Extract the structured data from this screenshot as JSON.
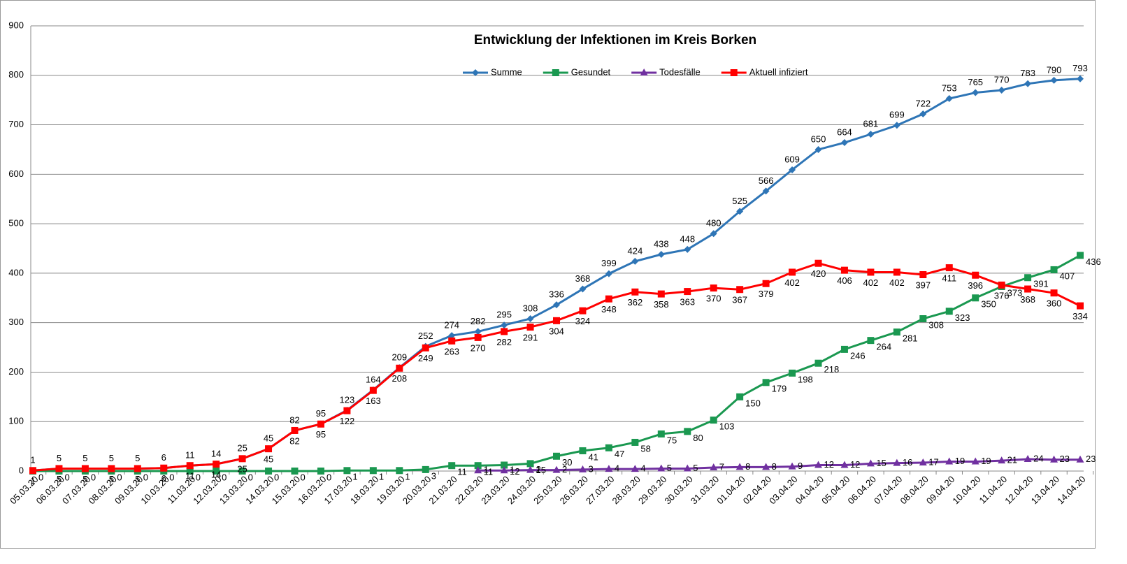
{
  "chart_data": {
    "type": "line",
    "title": "Entwicklung der Infektionen im Kreis Borken",
    "categories": [
      "05.03.20",
      "06.03.20",
      "07.03.20",
      "08.03.20",
      "09.03.20",
      "10.03.20",
      "11.03.20",
      "12.03.20",
      "13.03.20",
      "14.03.20",
      "15.03.20",
      "16.03.20",
      "17.03.20",
      "18.03.20",
      "19.03.20",
      "20.03.20",
      "21.03.20",
      "22.03.20",
      "23.03.20",
      "24.03.20",
      "25.03.20",
      "26.03.20",
      "27.03.20",
      "28.03.20",
      "29.03.20",
      "30.03.20",
      "31.03.20",
      "01.04.20",
      "02.04.20",
      "03.04.20",
      "04.04.20",
      "05.04.20",
      "06.04.20",
      "07.04.20",
      "08.04.20",
      "09.04.20",
      "10.04.20",
      "11.04.20",
      "12.04.20",
      "13.04.20",
      "14.04.20"
    ],
    "series": [
      {
        "name": "Summe",
        "color": "#2e75b6",
        "marker": "diamond",
        "values": [
          1,
          5,
          5,
          5,
          5,
          6,
          11,
          14,
          25,
          45,
          82,
          95,
          123,
          164,
          209,
          252,
          274,
          282,
          295,
          308,
          336,
          368,
          399,
          424,
          438,
          448,
          480,
          525,
          566,
          609,
          650,
          664,
          681,
          699,
          722,
          753,
          765,
          770,
          783,
          790,
          793
        ]
      },
      {
        "name": "Gesundet",
        "color": "#1a9850",
        "marker": "square",
        "values": [
          0,
          0,
          0,
          0,
          0,
          0,
          0,
          0,
          0,
          0,
          0,
          0,
          1,
          1,
          1,
          3,
          11,
          11,
          12,
          15,
          30,
          41,
          47,
          58,
          75,
          80,
          103,
          150,
          179,
          198,
          218,
          246,
          264,
          281,
          308,
          323,
          350,
          373,
          391,
          407,
          436
        ]
      },
      {
        "name": "Todesfälle",
        "color": "#7030a0",
        "marker": "triangle",
        "values": [
          null,
          null,
          null,
          null,
          null,
          null,
          null,
          null,
          null,
          null,
          null,
          null,
          null,
          null,
          null,
          null,
          null,
          1,
          1,
          2,
          2,
          3,
          4,
          4,
          5,
          5,
          7,
          8,
          8,
          9,
          12,
          12,
          15,
          16,
          17,
          19,
          19,
          21,
          24,
          23,
          23
        ]
      },
      {
        "name": "Aktuell infiziert",
        "color": "#ff0000",
        "marker": "square",
        "values": [
          1,
          5,
          5,
          5,
          5,
          6,
          11,
          14,
          25,
          45,
          82,
          95,
          122,
          163,
          208,
          249,
          263,
          270,
          282,
          291,
          304,
          324,
          348,
          362,
          358,
          363,
          370,
          367,
          379,
          402,
          420,
          406,
          402,
          402,
          397,
          411,
          396,
          376,
          368,
          360,
          334
        ]
      }
    ],
    "ylim": [
      0,
      900
    ],
    "yticks": [
      0,
      100,
      200,
      300,
      400,
      500,
      600,
      700,
      800,
      900
    ],
    "grid": true,
    "legend": "top"
  }
}
